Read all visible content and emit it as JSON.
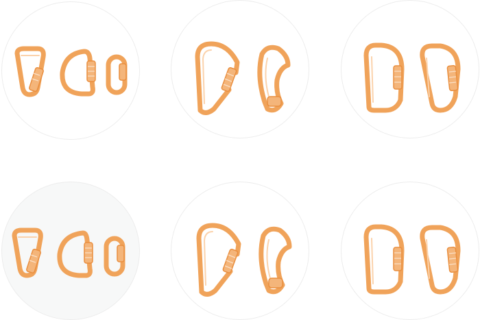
{
  "catalog": {
    "tiles": [
      {
        "items": [
          "pear-screwgate-icon",
          "d-shape-screwgate-icon",
          "oval-quicklink-icon"
        ]
      },
      {
        "items": [
          "hms-carabiner-icon",
          "bent-gate-carabiner-icon"
        ]
      },
      {
        "items": [
          "d-carabiner-icon",
          "offset-d-carabiner-icon"
        ]
      },
      {
        "items": [
          "pear-screwgate-icon",
          "d-shape-screwgate-icon",
          "oval-quicklink-icon"
        ]
      },
      {
        "items": [
          "hms-carabiner-icon",
          "bent-gate-carabiner-icon"
        ]
      },
      {
        "items": [
          "d-carabiner-icon",
          "offset-d-carabiner-icon"
        ]
      }
    ],
    "colors": {
      "accent": "#f0a35a",
      "sleeve": "#f4b57a",
      "outline": "#ececec"
    }
  }
}
